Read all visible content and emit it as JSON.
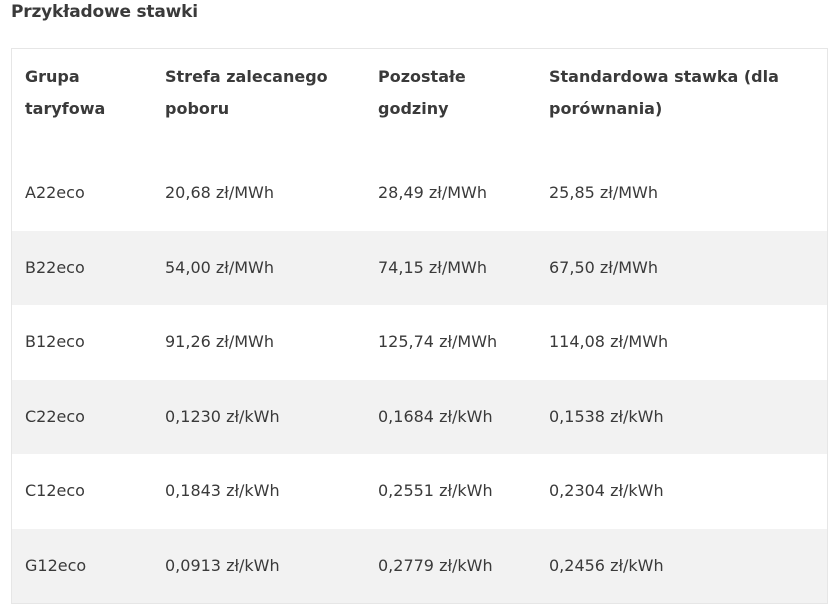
{
  "heading": "Przykładowe stawki",
  "table": {
    "headers": [
      "Grupa taryfowa",
      "Strefa zalecanego poboru",
      "Pozostałe godziny",
      "Standardowa stawka (dla porównania)"
    ],
    "rows": [
      [
        "A22eco",
        "20,68 zł/MWh",
        "28,49 zł/MWh",
        "25,85 zł/MWh"
      ],
      [
        "B22eco",
        "54,00 zł/MWh",
        "74,15 zł/MWh",
        "67,50 zł/MWh"
      ],
      [
        "B12eco",
        "91,26 zł/MWh",
        "125,74 zł/MWh",
        "114,08 zł/MWh"
      ],
      [
        "C22eco",
        "0,1230 zł/kWh",
        "0,1684 zł/kWh",
        "0,1538 zł/kWh"
      ],
      [
        "C12eco",
        "0,1843 zł/kWh",
        "0,2551 zł/kWh",
        "0,2304 zł/kWh"
      ],
      [
        "G12eco",
        "0,0913 zł/kWh",
        "0,2779 zł/kWh",
        "0,2456 zł/kWh"
      ]
    ]
  },
  "colors": {
    "shaded_row": "#f2f2f2",
    "border": "#e6e6e6",
    "text": "#3a3a3a"
  }
}
